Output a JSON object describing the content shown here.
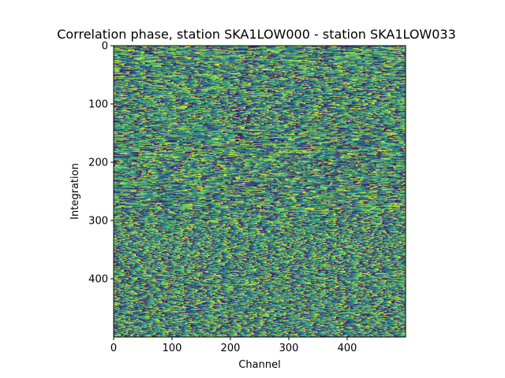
{
  "chart_data": {
    "type": "heatmap",
    "title": "Correlation phase, station SKA1LOW000 - station SKA1LOW033",
    "xlabel": "Channel",
    "ylabel": "Integration",
    "xlim": [
      0,
      500
    ],
    "ylim": [
      500,
      0
    ],
    "y_axis_inverted": true,
    "colormap": "viridis",
    "colormap_stops": [
      "#440154",
      "#3b528b",
      "#21918c",
      "#5ec962",
      "#fde725"
    ],
    "value_range": [
      -3.14159,
      3.14159
    ],
    "pattern": "phase wrapping with short horizontal streaks, no discernible structure",
    "xticks": [
      0,
      100,
      200,
      300,
      400
    ],
    "xtick_labels": [
      "0",
      "100",
      "200",
      "300",
      "400"
    ],
    "yticks": [
      0,
      100,
      200,
      300,
      400
    ],
    "ytick_labels": [
      "0",
      "100",
      "200",
      "300",
      "400"
    ],
    "grid": false,
    "legend": "none"
  }
}
